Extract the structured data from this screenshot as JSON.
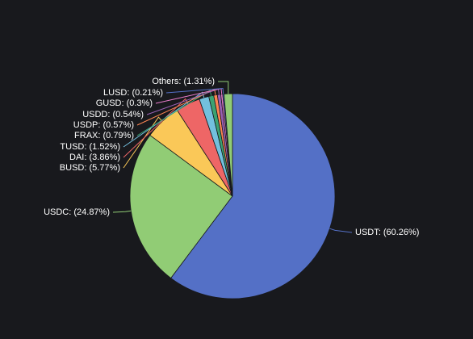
{
  "chart_data": {
    "type": "pie",
    "title": "",
    "legend": "none",
    "slices": [
      {
        "name": "USDT",
        "label": "USDT: (60.26%)",
        "value": 60.26,
        "color": "#5470c6"
      },
      {
        "name": "USDC",
        "label": "USDC: (24.87%)",
        "value": 24.87,
        "color": "#91cc75"
      },
      {
        "name": "BUSD",
        "label": "BUSD: (5.77%)",
        "value": 5.77,
        "color": "#fac858"
      },
      {
        "name": "DAI",
        "label": "DAI: (3.86%)",
        "value": 3.86,
        "color": "#ee6666"
      },
      {
        "name": "TUSD",
        "label": "TUSD: (1.52%)",
        "value": 1.52,
        "color": "#73c0de"
      },
      {
        "name": "FRAX",
        "label": "FRAX: (0.79%)",
        "value": 0.79,
        "color": "#3ba272"
      },
      {
        "name": "USDP",
        "label": "USDP: (0.57%)",
        "value": 0.57,
        "color": "#fc8452"
      },
      {
        "name": "USDD",
        "label": "USDD: (0.54%)",
        "value": 0.54,
        "color": "#9a60b4"
      },
      {
        "name": "GUSD",
        "label": "GUSD: (0.3%)",
        "value": 0.3,
        "color": "#ea7ccc"
      },
      {
        "name": "LUSD",
        "label": "LUSD: (0.21%)",
        "value": 0.21,
        "color": "#5470c6"
      },
      {
        "name": "Others",
        "label": "Others: (1.31%)",
        "value": 1.31,
        "color": "#91cc75"
      }
    ]
  }
}
